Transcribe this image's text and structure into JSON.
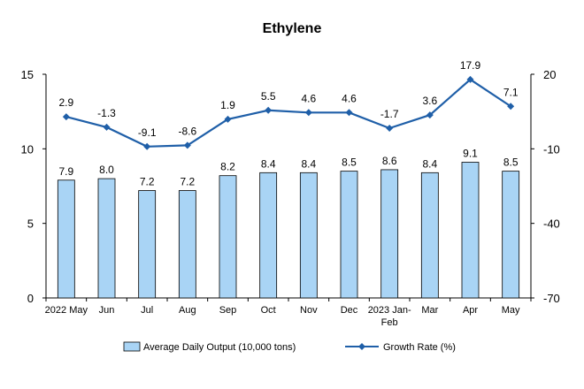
{
  "chart_data": {
    "type": "bar+line",
    "title": "Ethylene",
    "categories": [
      "2022 May",
      "Jun",
      "Jul",
      "Aug",
      "Sep",
      "Oct",
      "Nov",
      "Dec",
      "2023 Jan-Feb",
      "Mar",
      "Apr",
      "May"
    ],
    "series": [
      {
        "name": "Average Daily Output (10,000 tons)",
        "type": "bar",
        "axis": "left",
        "color": "#a9d4f5",
        "values": [
          7.9,
          8.0,
          7.2,
          7.2,
          8.2,
          8.4,
          8.4,
          8.5,
          8.6,
          8.4,
          9.1,
          8.5
        ],
        "labels": [
          "7.9",
          "8.0",
          "7.2",
          "7.2",
          "8.2",
          "8.4",
          "8.4",
          "8.5",
          "8.6",
          "8.4",
          "9.1",
          "8.5"
        ]
      },
      {
        "name": "Growth Rate (%)",
        "type": "line",
        "axis": "right",
        "color": "#1f5fa8",
        "values": [
          2.9,
          -1.3,
          -9.1,
          -8.6,
          1.9,
          5.5,
          4.6,
          4.6,
          -1.7,
          3.6,
          17.9,
          7.1
        ],
        "labels": [
          "2.9",
          "-1.3",
          "-9.1",
          "-8.6",
          "1.9",
          "5.5",
          "4.6",
          "4.6",
          "-1.7",
          "3.6",
          "17.9",
          "7.1"
        ]
      }
    ],
    "y_left": {
      "range": [
        0,
        15
      ],
      "ticks": [
        "0",
        "5",
        "10",
        "15"
      ]
    },
    "y_right": {
      "range": [
        -70,
        20
      ],
      "ticks": [
        "-70",
        "-40",
        "-10",
        "20"
      ]
    },
    "grid": false,
    "legend_position": "bottom"
  }
}
